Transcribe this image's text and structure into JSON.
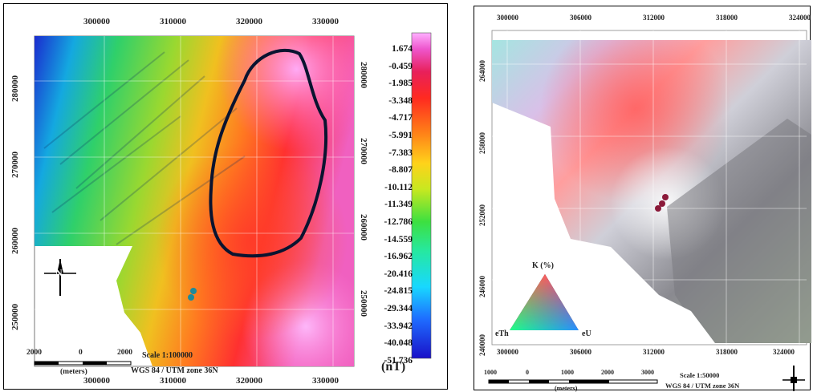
{
  "magnetic_map": {
    "x_ticks": [
      "300000",
      "310000",
      "320000",
      "330000"
    ],
    "y_ticks_left": [
      "280000",
      "270000",
      "260000",
      "250000"
    ],
    "y_ticks_right": [
      "280000",
      "270000",
      "260000",
      "250000"
    ],
    "colorbar": {
      "labels": [
        "1.674",
        "-0.459",
        "-1.985",
        "-3.348",
        "-4.717",
        "-5.991",
        "-7.383",
        "-8.807",
        "-10.112",
        "-11.349",
        "-12.786",
        "-14.559",
        "-16.962",
        "-20.416",
        "-24.815",
        "-29.344",
        "-33.942",
        "-40.048",
        "-51.736"
      ],
      "unit": "(nT)"
    },
    "scale_bar": {
      "labels": [
        "2000",
        "0",
        "2000"
      ],
      "unit": "(meters)"
    },
    "scale_text": "Scale 1:100000",
    "projection": "WGS 84 / UTM zone 36N",
    "north_label": "N"
  },
  "ternary_map": {
    "x_ticks_top": [
      "300000",
      "306000",
      "312000",
      "318000",
      "324000"
    ],
    "x_ticks_bottom": [
      "300000",
      "306000",
      "312000",
      "318000",
      "324000"
    ],
    "y_ticks_left": [
      "264000",
      "258000",
      "252000",
      "246000",
      "240000"
    ],
    "triangle": {
      "top": "K (%)",
      "left": "eTh",
      "right": "eU"
    },
    "scale_bar": {
      "labels": [
        "1000",
        "0",
        "1000",
        "2000",
        "3000"
      ],
      "unit": "(meters)"
    },
    "scale_text": "Scale 1:50000",
    "projection": "WGS 84 / UTM zone 36N"
  }
}
